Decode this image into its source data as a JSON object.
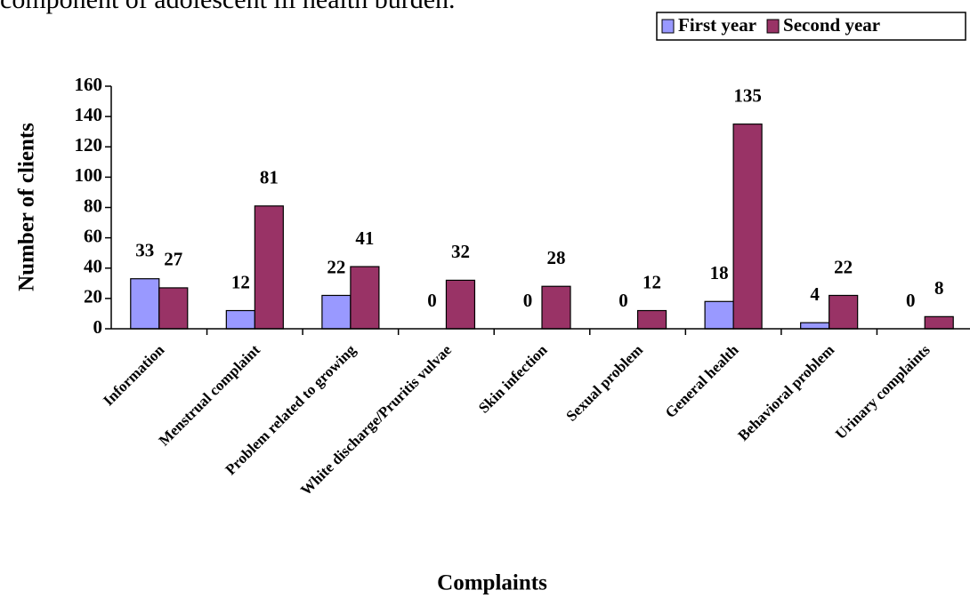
{
  "chart_data": {
    "type": "bar",
    "annotation": "component of adolescent ill health burden.",
    "x_label": "Complaints",
    "y_label": "Number of clients",
    "categories": [
      "Information",
      "Menstrual complaint",
      "Problem related to growing",
      "White discharge/Pruritis vulvae",
      "Skin infection",
      "Sexual problem",
      "General health",
      "Behavioral problem",
      "Urinary complaints"
    ],
    "series": [
      {
        "name": "First year",
        "color": "#9999ff",
        "values": [
          33,
          12,
          22,
          0,
          0,
          0,
          18,
          4,
          0
        ]
      },
      {
        "name": "Second year",
        "color": "#993366",
        "values": [
          27,
          81,
          41,
          32,
          28,
          12,
          135,
          22,
          8
        ]
      }
    ],
    "ylim": [
      0,
      160
    ],
    "yticks": [
      0,
      20,
      40,
      60,
      80,
      100,
      120,
      140,
      160
    ],
    "legend": "top-right"
  }
}
